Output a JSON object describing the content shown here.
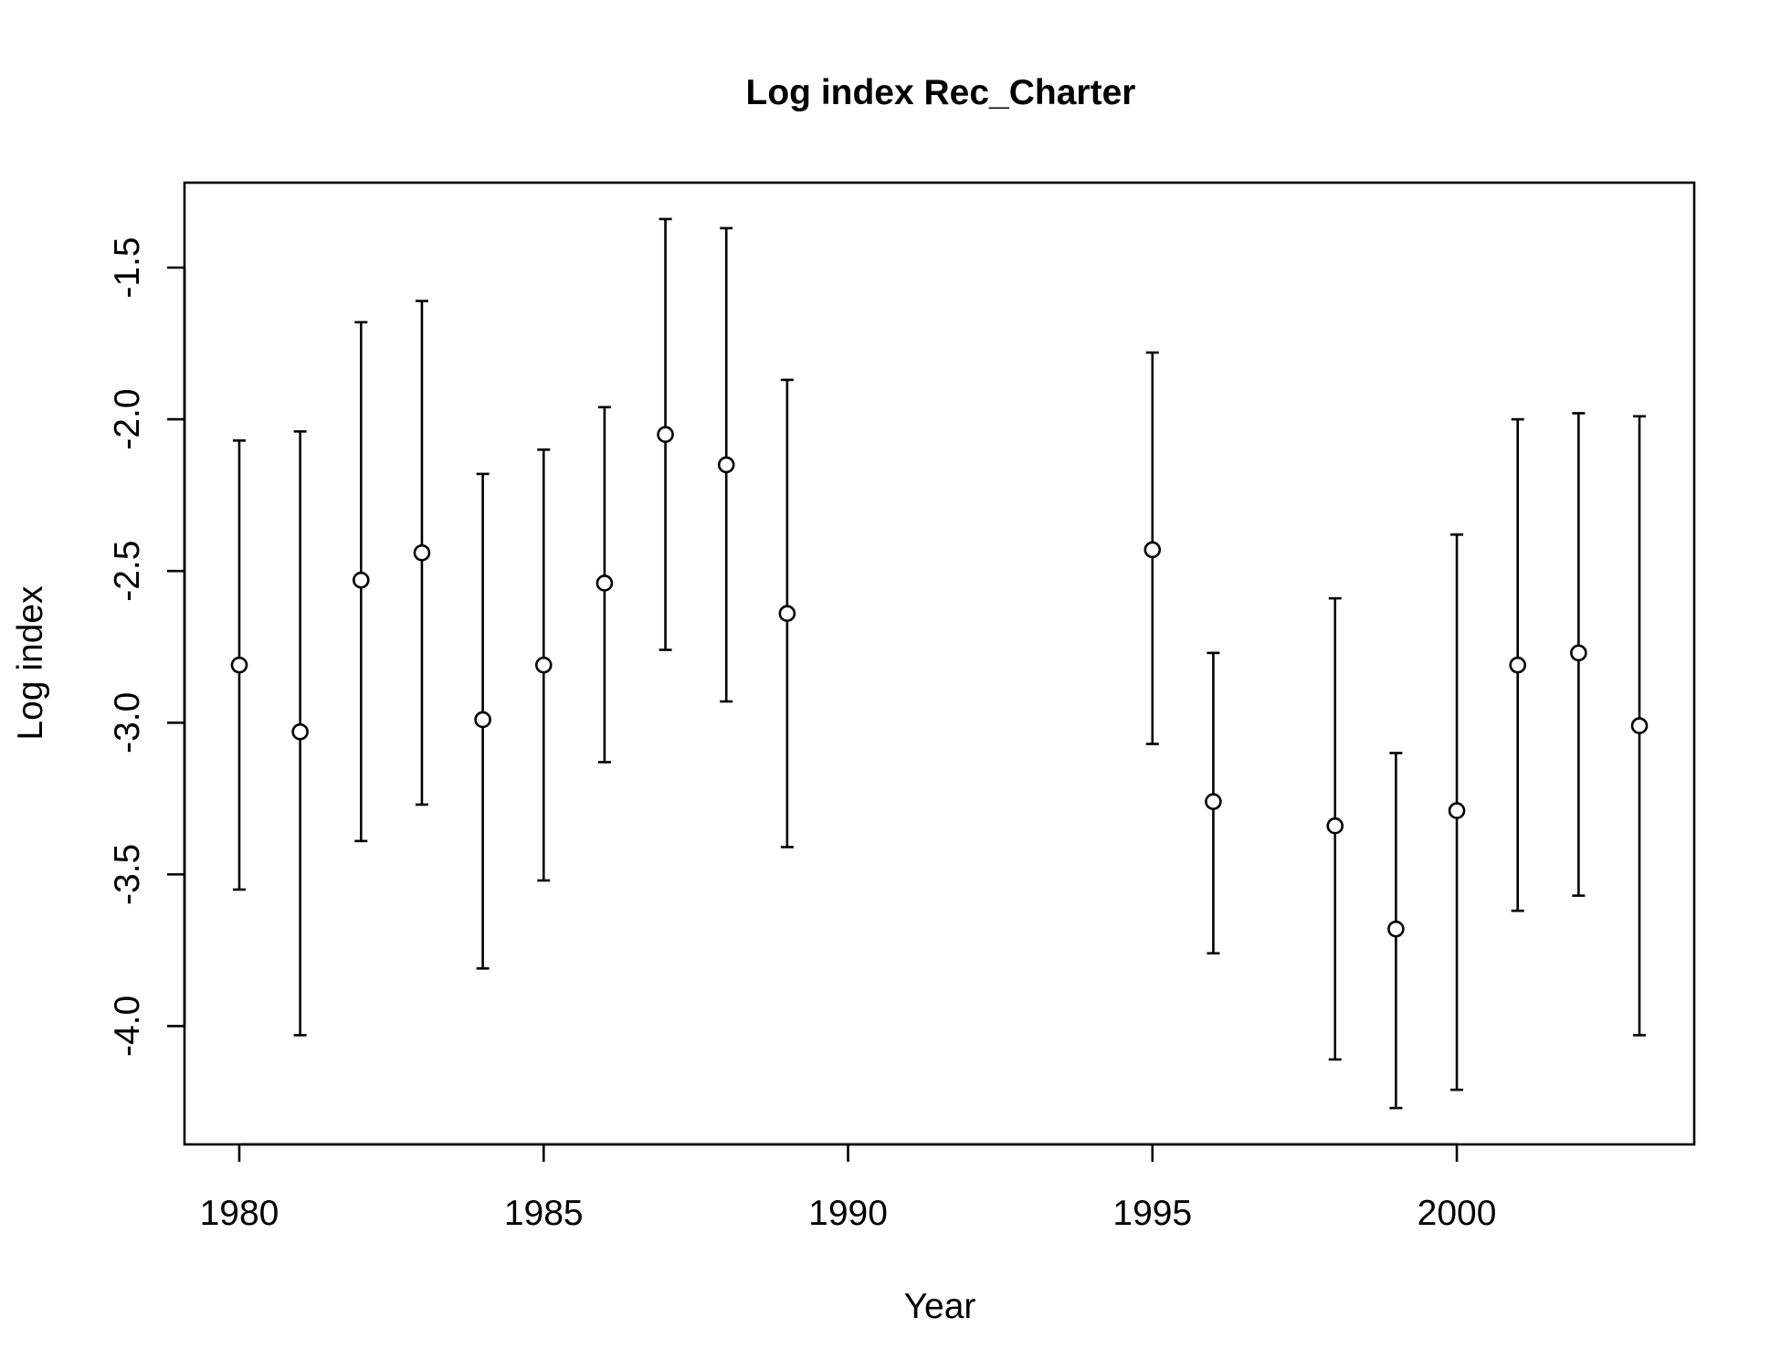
{
  "chart_data": {
    "type": "scatter",
    "title": "Log index Rec_Charter",
    "xlabel": "Year",
    "ylabel": "Log index",
    "xlim": [
      1979.1,
      2003.9
    ],
    "ylim": [
      -4.39,
      -1.22
    ],
    "x_ticks": [
      1980,
      1985,
      1990,
      1995,
      2000
    ],
    "x_tick_labels": [
      "1980",
      "1985",
      "1990",
      "1995",
      "2000"
    ],
    "y_ticks": [
      -4.0,
      -3.5,
      -3.0,
      -2.5,
      -2.0,
      -1.5
    ],
    "y_tick_labels": [
      "-4.0",
      "-3.5",
      "-3.0",
      "-2.5",
      "-2.0",
      "-1.5"
    ],
    "grid": false,
    "marker": "open-circle",
    "series": [
      {
        "points": [
          {
            "x": 1980,
            "y": -2.81,
            "lower": -3.55,
            "upper": -2.07
          },
          {
            "x": 1981,
            "y": -3.03,
            "lower": -4.03,
            "upper": -2.04
          },
          {
            "x": 1982,
            "y": -2.53,
            "lower": -3.39,
            "upper": -1.68
          },
          {
            "x": 1983,
            "y": -2.44,
            "lower": -3.27,
            "upper": -1.61
          },
          {
            "x": 1984,
            "y": -2.99,
            "lower": -3.81,
            "upper": -2.18
          },
          {
            "x": 1985,
            "y": -2.81,
            "lower": -3.52,
            "upper": -2.1
          },
          {
            "x": 1986,
            "y": -2.54,
            "lower": -3.13,
            "upper": -1.96
          },
          {
            "x": 1987,
            "y": -2.05,
            "lower": -2.76,
            "upper": -1.34
          },
          {
            "x": 1988,
            "y": -2.15,
            "lower": -2.93,
            "upper": -1.37
          },
          {
            "x": 1989,
            "y": -2.64,
            "lower": -3.41,
            "upper": -1.87
          },
          {
            "x": 1995,
            "y": -2.43,
            "lower": -3.07,
            "upper": -1.78
          },
          {
            "x": 1996,
            "y": -3.26,
            "lower": -3.76,
            "upper": -2.77
          },
          {
            "x": 1998,
            "y": -3.34,
            "lower": -4.11,
            "upper": -2.59
          },
          {
            "x": 1999,
            "y": -3.68,
            "lower": -4.27,
            "upper": -3.1
          },
          {
            "x": 2000,
            "y": -3.29,
            "lower": -4.21,
            "upper": -2.38
          },
          {
            "x": 2001,
            "y": -2.81,
            "lower": -3.62,
            "upper": -2.0
          },
          {
            "x": 2002,
            "y": -2.77,
            "lower": -3.57,
            "upper": -1.98
          },
          {
            "x": 2003,
            "y": -3.01,
            "lower": -4.03,
            "upper": -1.99
          }
        ]
      }
    ]
  }
}
